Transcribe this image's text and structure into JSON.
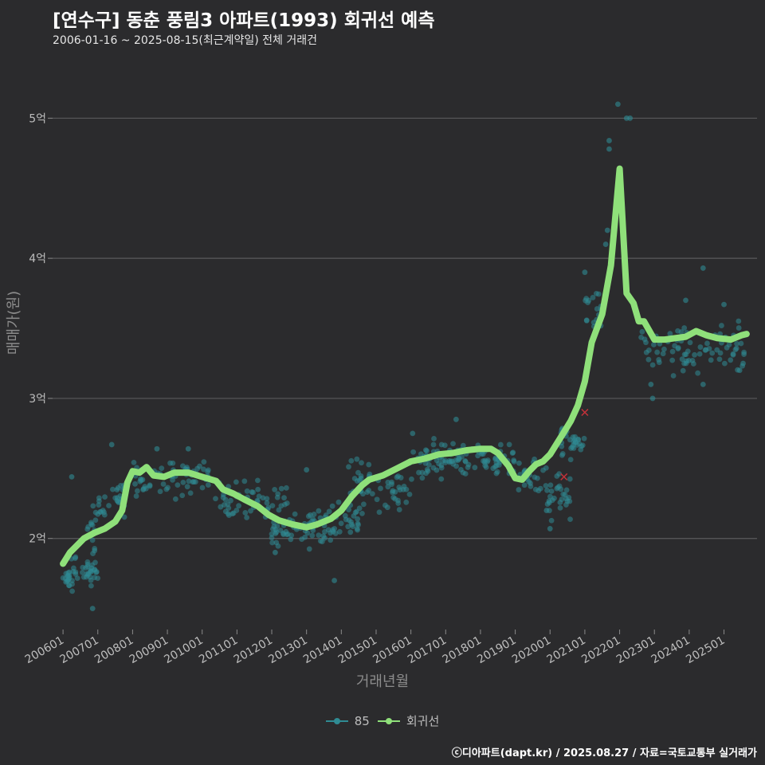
{
  "chart_data": {
    "type": "scatter+line",
    "title": "[연수구] 동춘 풍림3 아파트(1993) 회귀선 예측",
    "subtitle": "2006-01-16 ~ 2025-08-15(최근계약일) 전체 거래건",
    "xlabel": "거래년월",
    "ylabel": "매매가(원)",
    "x_ticks": [
      "200601",
      "200701",
      "200801",
      "200901",
      "201001",
      "201101",
      "201201",
      "201301",
      "201401",
      "201501",
      "201601",
      "201701",
      "201801",
      "201901",
      "202001",
      "202101",
      "202201",
      "202301",
      "202401",
      "202501"
    ],
    "x_range": [
      2005.7,
      2025.95
    ],
    "y_ticks": [
      {
        "value": 2,
        "label": "2억"
      },
      {
        "value": 3,
        "label": "3억"
      },
      {
        "value": 4,
        "label": "4억"
      },
      {
        "value": 5,
        "label": "5억"
      }
    ],
    "y_range": [
      1.35,
      5.4
    ],
    "y_unit": "억원",
    "grid": true,
    "series": [
      {
        "name": "85",
        "kind": "scatter",
        "color": "#2f8b93",
        "clusters": [
          {
            "x": [
              2006.0,
              2006.2
            ],
            "y": [
              1.6,
              1.85
            ],
            "n": 16
          },
          {
            "x": [
              2006.2,
              2007.0
            ],
            "y": [
              1.6,
              1.95
            ],
            "n": 40
          },
          {
            "x": [
              2006.6,
              2007.2
            ],
            "y": [
              1.95,
              2.3
            ],
            "n": 18
          },
          {
            "x": [
              2007.0,
              2007.8
            ],
            "y": [
              2.1,
              2.5
            ],
            "n": 22
          },
          {
            "x": [
              2008.0,
              2010.5
            ],
            "y": [
              2.25,
              2.6
            ],
            "n": 70
          },
          {
            "x": [
              2010.5,
              2012.5
            ],
            "y": [
              2.1,
              2.45
            ],
            "n": 50
          },
          {
            "x": [
              2012.0,
              2013.6
            ],
            "y": [
              1.9,
              2.2
            ],
            "n": 55
          },
          {
            "x": [
              2013.0,
              2014.5
            ],
            "y": [
              1.95,
              2.3
            ],
            "n": 40
          },
          {
            "x": [
              2014.2,
              2016.0
            ],
            "y": [
              2.1,
              2.6
            ],
            "n": 60
          },
          {
            "x": [
              2016.0,
              2019.0
            ],
            "y": [
              2.35,
              2.75
            ],
            "n": 110
          },
          {
            "x": [
              2019.0,
              2019.9
            ],
            "y": [
              2.3,
              2.6
            ],
            "n": 25
          },
          {
            "x": [
              2019.9,
              2020.6
            ],
            "y": [
              2.05,
              2.55
            ],
            "n": 30
          },
          {
            "x": [
              2020.3,
              2021.0
            ],
            "y": [
              2.5,
              2.9
            ],
            "n": 30
          },
          {
            "x": [
              2021.0,
              2021.5
            ],
            "y": [
              3.3,
              3.9
            ],
            "n": 18
          },
          {
            "x": [
              2022.6,
              2025.6
            ],
            "y": [
              3.1,
              3.6
            ],
            "n": 80
          }
        ],
        "points": [
          {
            "x": 2006.25,
            "y": 2.44
          },
          {
            "x": 2006.85,
            "y": 1.5
          },
          {
            "x": 2007.4,
            "y": 2.67
          },
          {
            "x": 2008.7,
            "y": 2.64
          },
          {
            "x": 2009.6,
            "y": 2.64
          },
          {
            "x": 2012.1,
            "y": 1.9
          },
          {
            "x": 2013.0,
            "y": 2.49
          },
          {
            "x": 2013.8,
            "y": 1.7
          },
          {
            "x": 2016.05,
            "y": 2.75
          },
          {
            "x": 2017.3,
            "y": 2.85
          },
          {
            "x": 2019.9,
            "y": 2.2
          },
          {
            "x": 2020.0,
            "y": 2.07
          },
          {
            "x": 2021.0,
            "y": 3.9
          },
          {
            "x": 2021.6,
            "y": 4.1
          },
          {
            "x": 2021.65,
            "y": 4.2
          },
          {
            "x": 2021.7,
            "y": 4.78
          },
          {
            "x": 2021.7,
            "y": 4.84
          },
          {
            "x": 2021.95,
            "y": 5.1
          },
          {
            "x": 2022.2,
            "y": 5.0
          },
          {
            "x": 2022.3,
            "y": 5.0
          },
          {
            "x": 2022.9,
            "y": 3.1
          },
          {
            "x": 2022.95,
            "y": 3.0
          },
          {
            "x": 2023.9,
            "y": 3.7
          },
          {
            "x": 2024.4,
            "y": 3.93
          },
          {
            "x": 2024.4,
            "y": 3.1
          },
          {
            "x": 2025.0,
            "y": 3.67
          },
          {
            "x": 2025.45,
            "y": 3.2
          },
          {
            "x": 2025.55,
            "y": 3.25
          }
        ]
      },
      {
        "name": "회귀선",
        "kind": "line",
        "color": "#8fe07a",
        "x": [
          2006.0,
          2006.2,
          2006.4,
          2006.6,
          2006.9,
          2007.2,
          2007.5,
          2007.7,
          2007.85,
          2008.0,
          2008.2,
          2008.4,
          2008.6,
          2008.9,
          2009.2,
          2009.6,
          2010.0,
          2010.4,
          2010.6,
          2010.9,
          2011.2,
          2011.6,
          2011.9,
          2012.2,
          2012.6,
          2013.0,
          2013.3,
          2013.7,
          2014.0,
          2014.3,
          2014.6,
          2014.8,
          2015.2,
          2015.6,
          2016.0,
          2016.4,
          2016.8,
          2017.2,
          2017.6,
          2018.0,
          2018.3,
          2018.5,
          2018.8,
          2019.0,
          2019.2,
          2019.4,
          2019.6,
          2019.8,
          2020.0,
          2020.3,
          2020.6,
          2020.8,
          2021.0,
          2021.2,
          2021.5,
          2021.75,
          2022.0,
          2022.2,
          2022.4,
          2022.55,
          2022.7,
          2023.0,
          2023.3,
          2023.6,
          2023.9,
          2024.2,
          2024.5,
          2024.8,
          2025.2,
          2025.5,
          2025.65
        ],
        "y": [
          1.82,
          1.9,
          1.95,
          2.0,
          2.04,
          2.07,
          2.12,
          2.2,
          2.4,
          2.48,
          2.47,
          2.51,
          2.45,
          2.44,
          2.47,
          2.47,
          2.44,
          2.41,
          2.35,
          2.32,
          2.28,
          2.23,
          2.17,
          2.13,
          2.1,
          2.08,
          2.1,
          2.14,
          2.2,
          2.3,
          2.38,
          2.42,
          2.45,
          2.5,
          2.55,
          2.57,
          2.6,
          2.61,
          2.63,
          2.64,
          2.64,
          2.61,
          2.52,
          2.43,
          2.42,
          2.48,
          2.53,
          2.55,
          2.6,
          2.72,
          2.84,
          2.95,
          3.12,
          3.4,
          3.6,
          3.95,
          4.64,
          3.75,
          3.68,
          3.55,
          3.55,
          3.42,
          3.42,
          3.43,
          3.44,
          3.48,
          3.45,
          3.43,
          3.42,
          3.45,
          3.46
        ]
      }
    ],
    "annotations": [
      {
        "x": 2020.4,
        "y": 2.44,
        "marker": "x",
        "color": "#c4323a"
      },
      {
        "x": 2021.0,
        "y": 2.9,
        "marker": "x",
        "color": "#c4323a"
      }
    ],
    "legend": {
      "position": "bottom",
      "items": [
        "85",
        "회귀선"
      ]
    }
  },
  "footer": "ⓒ디아파트(dapt.kr) / 2025.08.27 / 자료=국토교통부 실거래가"
}
